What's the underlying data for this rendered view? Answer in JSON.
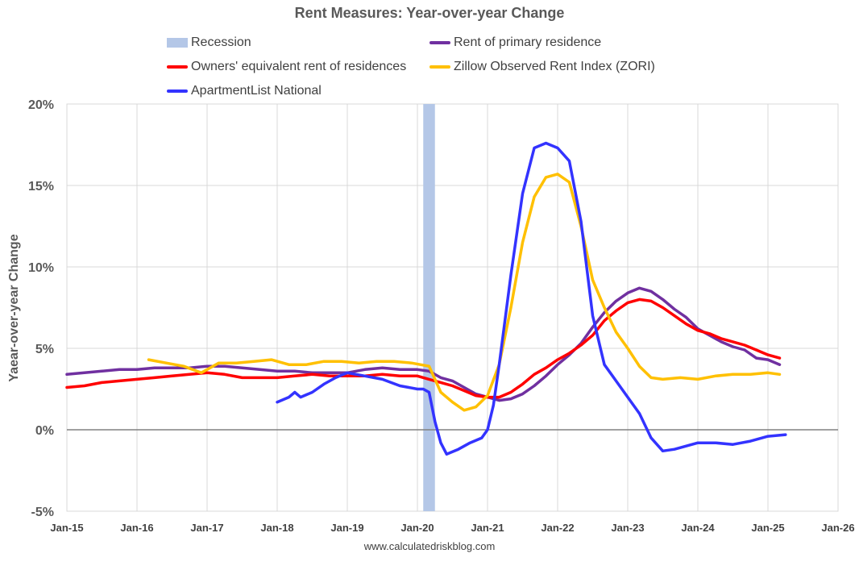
{
  "chart_data": {
    "type": "line",
    "title": "Rent Measures: Year-over-year Change",
    "ylabel": "Yaear-over-year Change",
    "xlabel": "",
    "footer": "www.calculatedriskblog.com",
    "x_axis": {
      "start": "2015-01",
      "end": "2026-01",
      "ticks": [
        "Jan-15",
        "Jan-16",
        "Jan-17",
        "Jan-18",
        "Jan-19",
        "Jan-20",
        "Jan-21",
        "Jan-22",
        "Jan-23",
        "Jan-24",
        "Jan-25",
        "Jan-26"
      ]
    },
    "ylim": [
      -5,
      20
    ],
    "y_ticks": [
      "-5%",
      "0%",
      "5%",
      "10%",
      "15%",
      "20%"
    ],
    "y_tick_values": [
      -5,
      0,
      5,
      10,
      15,
      20
    ],
    "grid": true,
    "legend_position": "top",
    "recession": {
      "label": "Recession",
      "start": "2020-02",
      "end": "2020-04",
      "color": "#b4c7e7"
    },
    "series": [
      {
        "name": "Rent of primary residence",
        "color": "#7030a0",
        "points": [
          [
            "2015-01",
            3.4
          ],
          [
            "2015-04",
            3.5
          ],
          [
            "2015-07",
            3.6
          ],
          [
            "2015-10",
            3.7
          ],
          [
            "2016-01",
            3.7
          ],
          [
            "2016-04",
            3.8
          ],
          [
            "2016-07",
            3.8
          ],
          [
            "2016-10",
            3.8
          ],
          [
            "2017-01",
            3.9
          ],
          [
            "2017-04",
            3.9
          ],
          [
            "2017-07",
            3.8
          ],
          [
            "2017-10",
            3.7
          ],
          [
            "2018-01",
            3.6
          ],
          [
            "2018-04",
            3.6
          ],
          [
            "2018-07",
            3.5
          ],
          [
            "2018-10",
            3.5
          ],
          [
            "2019-01",
            3.5
          ],
          [
            "2019-04",
            3.7
          ],
          [
            "2019-07",
            3.8
          ],
          [
            "2019-10",
            3.7
          ],
          [
            "2020-01",
            3.7
          ],
          [
            "2020-03",
            3.6
          ],
          [
            "2020-05",
            3.2
          ],
          [
            "2020-07",
            3.0
          ],
          [
            "2020-09",
            2.6
          ],
          [
            "2020-11",
            2.2
          ],
          [
            "2021-01",
            2.0
          ],
          [
            "2021-03",
            1.8
          ],
          [
            "2021-05",
            1.9
          ],
          [
            "2021-07",
            2.2
          ],
          [
            "2021-09",
            2.7
          ],
          [
            "2021-11",
            3.3
          ],
          [
            "2022-01",
            4.0
          ],
          [
            "2022-03",
            4.6
          ],
          [
            "2022-05",
            5.3
          ],
          [
            "2022-07",
            6.3
          ],
          [
            "2022-09",
            7.2
          ],
          [
            "2022-11",
            7.9
          ],
          [
            "2023-01",
            8.4
          ],
          [
            "2023-03",
            8.7
          ],
          [
            "2023-05",
            8.5
          ],
          [
            "2023-07",
            8.0
          ],
          [
            "2023-09",
            7.4
          ],
          [
            "2023-11",
            6.9
          ],
          [
            "2024-01",
            6.2
          ],
          [
            "2024-03",
            5.8
          ],
          [
            "2024-05",
            5.4
          ],
          [
            "2024-07",
            5.1
          ],
          [
            "2024-09",
            4.9
          ],
          [
            "2024-11",
            4.4
          ],
          [
            "2025-01",
            4.3
          ],
          [
            "2025-03",
            4.0
          ]
        ]
      },
      {
        "name": "Owners' equivalent rent of residences",
        "color": "#ff0000",
        "points": [
          [
            "2015-01",
            2.6
          ],
          [
            "2015-04",
            2.7
          ],
          [
            "2015-07",
            2.9
          ],
          [
            "2015-10",
            3.0
          ],
          [
            "2016-01",
            3.1
          ],
          [
            "2016-04",
            3.2
          ],
          [
            "2016-07",
            3.3
          ],
          [
            "2016-10",
            3.4
          ],
          [
            "2017-01",
            3.5
          ],
          [
            "2017-04",
            3.4
          ],
          [
            "2017-07",
            3.2
          ],
          [
            "2017-10",
            3.2
          ],
          [
            "2018-01",
            3.2
          ],
          [
            "2018-04",
            3.3
          ],
          [
            "2018-07",
            3.4
          ],
          [
            "2018-10",
            3.3
          ],
          [
            "2019-01",
            3.3
          ],
          [
            "2019-04",
            3.3
          ],
          [
            "2019-07",
            3.4
          ],
          [
            "2019-10",
            3.3
          ],
          [
            "2020-01",
            3.3
          ],
          [
            "2020-03",
            3.1
          ],
          [
            "2020-05",
            2.9
          ],
          [
            "2020-07",
            2.7
          ],
          [
            "2020-09",
            2.4
          ],
          [
            "2020-11",
            2.1
          ],
          [
            "2021-01",
            2.0
          ],
          [
            "2021-03",
            2.0
          ],
          [
            "2021-05",
            2.3
          ],
          [
            "2021-07",
            2.8
          ],
          [
            "2021-09",
            3.4
          ],
          [
            "2021-11",
            3.8
          ],
          [
            "2022-01",
            4.3
          ],
          [
            "2022-03",
            4.7
          ],
          [
            "2022-05",
            5.2
          ],
          [
            "2022-07",
            5.8
          ],
          [
            "2022-09",
            6.7
          ],
          [
            "2022-11",
            7.3
          ],
          [
            "2023-01",
            7.8
          ],
          [
            "2023-03",
            8.0
          ],
          [
            "2023-05",
            7.9
          ],
          [
            "2023-07",
            7.5
          ],
          [
            "2023-09",
            7.0
          ],
          [
            "2023-11",
            6.5
          ],
          [
            "2024-01",
            6.1
          ],
          [
            "2024-03",
            5.9
          ],
          [
            "2024-05",
            5.6
          ],
          [
            "2024-07",
            5.4
          ],
          [
            "2024-09",
            5.2
          ],
          [
            "2024-11",
            4.9
          ],
          [
            "2025-01",
            4.6
          ],
          [
            "2025-03",
            4.4
          ]
        ]
      },
      {
        "name": "Zillow Observed Rent Index (ZORI)",
        "color": "#ffc000",
        "points": [
          [
            "2016-03",
            4.3
          ],
          [
            "2016-06",
            4.1
          ],
          [
            "2016-09",
            3.9
          ],
          [
            "2016-12",
            3.5
          ],
          [
            "2017-03",
            4.1
          ],
          [
            "2017-06",
            4.1
          ],
          [
            "2017-09",
            4.2
          ],
          [
            "2017-12",
            4.3
          ],
          [
            "2018-03",
            4.0
          ],
          [
            "2018-06",
            4.0
          ],
          [
            "2018-09",
            4.2
          ],
          [
            "2018-12",
            4.2
          ],
          [
            "2019-03",
            4.1
          ],
          [
            "2019-06",
            4.2
          ],
          [
            "2019-09",
            4.2
          ],
          [
            "2019-12",
            4.1
          ],
          [
            "2020-03",
            3.9
          ],
          [
            "2020-05",
            2.3
          ],
          [
            "2020-07",
            1.7
          ],
          [
            "2020-09",
            1.2
          ],
          [
            "2020-11",
            1.4
          ],
          [
            "2021-01",
            2.1
          ],
          [
            "2021-03",
            4.0
          ],
          [
            "2021-05",
            7.5
          ],
          [
            "2021-07",
            11.5
          ],
          [
            "2021-09",
            14.3
          ],
          [
            "2021-11",
            15.5
          ],
          [
            "2022-01",
            15.7
          ],
          [
            "2022-03",
            15.2
          ],
          [
            "2022-05",
            12.5
          ],
          [
            "2022-07",
            9.2
          ],
          [
            "2022-09",
            7.5
          ],
          [
            "2022-11",
            6.0
          ],
          [
            "2023-01",
            5.0
          ],
          [
            "2023-03",
            3.9
          ],
          [
            "2023-05",
            3.2
          ],
          [
            "2023-07",
            3.1
          ],
          [
            "2023-10",
            3.2
          ],
          [
            "2024-01",
            3.1
          ],
          [
            "2024-04",
            3.3
          ],
          [
            "2024-07",
            3.4
          ],
          [
            "2024-10",
            3.4
          ],
          [
            "2025-01",
            3.5
          ],
          [
            "2025-03",
            3.4
          ]
        ]
      },
      {
        "name": "ApartmentList National",
        "color": "#3333ff",
        "points": [
          [
            "2018-01",
            1.7
          ],
          [
            "2018-03",
            2.0
          ],
          [
            "2018-04",
            2.3
          ],
          [
            "2018-05",
            2.0
          ],
          [
            "2018-07",
            2.3
          ],
          [
            "2018-09",
            2.8
          ],
          [
            "2018-11",
            3.2
          ],
          [
            "2019-01",
            3.5
          ],
          [
            "2019-04",
            3.3
          ],
          [
            "2019-07",
            3.1
          ],
          [
            "2019-10",
            2.7
          ],
          [
            "2020-01",
            2.5
          ],
          [
            "2020-02",
            2.5
          ],
          [
            "2020-03",
            2.3
          ],
          [
            "2020-04",
            0.5
          ],
          [
            "2020-05",
            -0.8
          ],
          [
            "2020-06",
            -1.5
          ],
          [
            "2020-08",
            -1.2
          ],
          [
            "2020-10",
            -0.8
          ],
          [
            "2020-12",
            -0.5
          ],
          [
            "2021-01",
            0.0
          ],
          [
            "2021-02",
            1.5
          ],
          [
            "2021-03",
            4.0
          ],
          [
            "2021-05",
            9.5
          ],
          [
            "2021-07",
            14.5
          ],
          [
            "2021-09",
            17.3
          ],
          [
            "2021-11",
            17.6
          ],
          [
            "2022-01",
            17.3
          ],
          [
            "2022-03",
            16.5
          ],
          [
            "2022-05",
            12.8
          ],
          [
            "2022-07",
            7.0
          ],
          [
            "2022-09",
            4.0
          ],
          [
            "2022-11",
            3.0
          ],
          [
            "2023-01",
            2.0
          ],
          [
            "2023-03",
            1.0
          ],
          [
            "2023-05",
            -0.5
          ],
          [
            "2023-07",
            -1.3
          ],
          [
            "2023-09",
            -1.2
          ],
          [
            "2023-11",
            -1.0
          ],
          [
            "2024-01",
            -0.8
          ],
          [
            "2024-04",
            -0.8
          ],
          [
            "2024-07",
            -0.9
          ],
          [
            "2024-10",
            -0.7
          ],
          [
            "2025-01",
            -0.4
          ],
          [
            "2025-04",
            -0.3
          ]
        ]
      }
    ]
  }
}
